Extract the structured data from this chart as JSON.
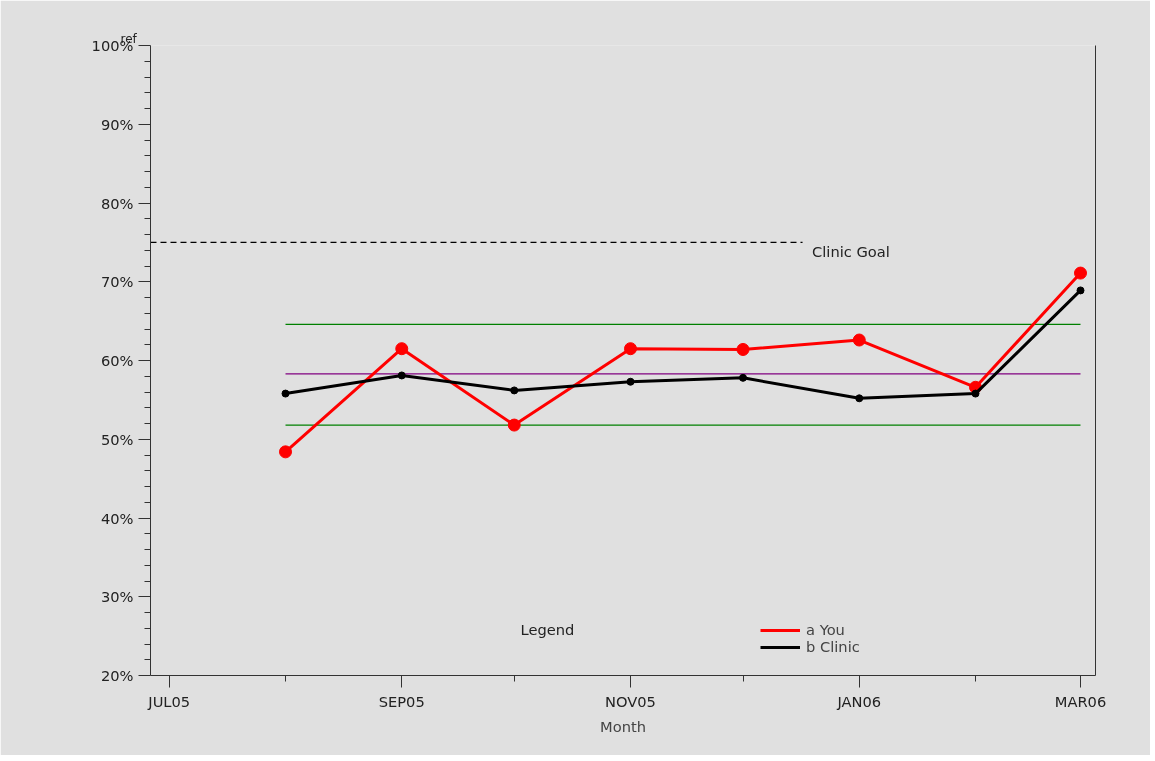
{
  "chart_data": {
    "type": "line",
    "xlabel": "Month",
    "legend_title": "Legend",
    "annotations": [
      "ref"
    ],
    "x": [
      "2005-08",
      "2005-09",
      "2005-10",
      "2005-11",
      "2005-12",
      "2006-01",
      "2006-02",
      "2006-03"
    ],
    "series": [
      {
        "name": "a You",
        "color": "#ff0000",
        "values": [
          48.4,
          61.5,
          51.8,
          61.5,
          61.4,
          62.6,
          56.6,
          71.1
        ]
      },
      {
        "name": "b Clinic",
        "color": "#000000",
        "values": [
          55.8,
          58.1,
          56.2,
          57.3,
          57.8,
          55.2,
          55.8,
          68.9
        ]
      }
    ],
    "xlim": [
      "2005-06-26",
      "2006-03-05"
    ],
    "xticks": [
      {
        "value": "2005-07",
        "label": "JUL05"
      },
      {
        "value": "2005-08",
        "label": null
      },
      {
        "value": "2005-09",
        "label": "SEP05"
      },
      {
        "value": "2005-10",
        "label": null
      },
      {
        "value": "2005-11",
        "label": "NOV05"
      },
      {
        "value": "2005-12",
        "label": null
      },
      {
        "value": "2006-01",
        "label": "JAN06"
      },
      {
        "value": "2006-02",
        "label": null
      },
      {
        "value": "2006-03",
        "label": "MAR06"
      }
    ],
    "ylim": [
      20,
      100
    ],
    "yticks": [
      {
        "value": 20,
        "label": "20%"
      },
      {
        "value": 22,
        "label": null
      },
      {
        "value": 24,
        "label": null
      },
      {
        "value": 26,
        "label": null
      },
      {
        "value": 28,
        "label": null
      },
      {
        "value": 30,
        "label": "30%"
      },
      {
        "value": 32,
        "label": null
      },
      {
        "value": 34,
        "label": null
      },
      {
        "value": 36,
        "label": null
      },
      {
        "value": 38,
        "label": null
      },
      {
        "value": 40,
        "label": "40%"
      },
      {
        "value": 42,
        "label": null
      },
      {
        "value": 44,
        "label": null
      },
      {
        "value": 46,
        "label": null
      },
      {
        "value": 48,
        "label": null
      },
      {
        "value": 50,
        "label": "50%"
      },
      {
        "value": 52,
        "label": null
      },
      {
        "value": 54,
        "label": null
      },
      {
        "value": 56,
        "label": null
      },
      {
        "value": 58,
        "label": null
      },
      {
        "value": 60,
        "label": "60%"
      },
      {
        "value": 62,
        "label": null
      },
      {
        "value": 64,
        "label": null
      },
      {
        "value": 66,
        "label": null
      },
      {
        "value": 68,
        "label": null
      },
      {
        "value": 70,
        "label": "70%"
      },
      {
        "value": 72,
        "label": null
      },
      {
        "value": 74,
        "label": null
      },
      {
        "value": 76,
        "label": null
      },
      {
        "value": 78,
        "label": null
      },
      {
        "value": 80,
        "label": "80%"
      },
      {
        "value": 82,
        "label": null
      },
      {
        "value": 84,
        "label": null
      },
      {
        "value": 86,
        "label": null
      },
      {
        "value": 88,
        "label": null
      },
      {
        "value": 90,
        "label": "90%"
      },
      {
        "value": 92,
        "label": null
      },
      {
        "value": 94,
        "label": null
      },
      {
        "value": 96,
        "label": null
      },
      {
        "value": 98,
        "label": null
      },
      {
        "value": 100,
        "label": "100%"
      }
    ],
    "ref_lines": [
      {
        "axis": "y",
        "value": 75,
        "label": "Clinic Goal",
        "color": "#000000",
        "line_style": "dashed"
      },
      {
        "axis": "y",
        "value": 64.6,
        "color": "#008000",
        "line_style": "solid"
      },
      {
        "axis": "y",
        "value": 58.3,
        "color": "#800080",
        "line_style": "solid"
      },
      {
        "axis": "y",
        "value": 51.8,
        "color": "#008000",
        "line_style": "solid"
      }
    ],
    "grid": false,
    "legend": "bottom",
    "marker": "circle",
    "line_style": "solid"
  }
}
